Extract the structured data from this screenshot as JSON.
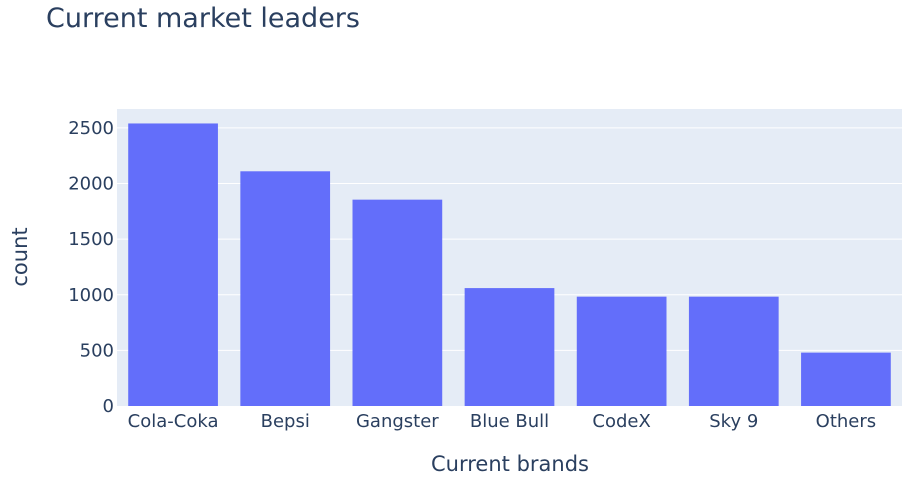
{
  "chart_data": {
    "type": "bar",
    "title": "Current market leaders",
    "xlabel": "Current brands",
    "ylabel": "count",
    "categories": [
      "Cola-Coka",
      "Bepsi",
      "Gangster",
      "Blue Bull",
      "CodeX",
      "Sky 9",
      "Others"
    ],
    "values": [
      2540,
      2110,
      1855,
      1060,
      983,
      983,
      480
    ],
    "ylim": [
      0,
      2670
    ],
    "yticks": [
      0,
      500,
      1000,
      1500,
      2000,
      2500
    ],
    "grid": true,
    "legend": "none",
    "colors": {
      "bar": "#636efa",
      "plot_background": "#e5ecf6",
      "gridline": "#ffffff",
      "text": "#2a3f5f"
    }
  }
}
